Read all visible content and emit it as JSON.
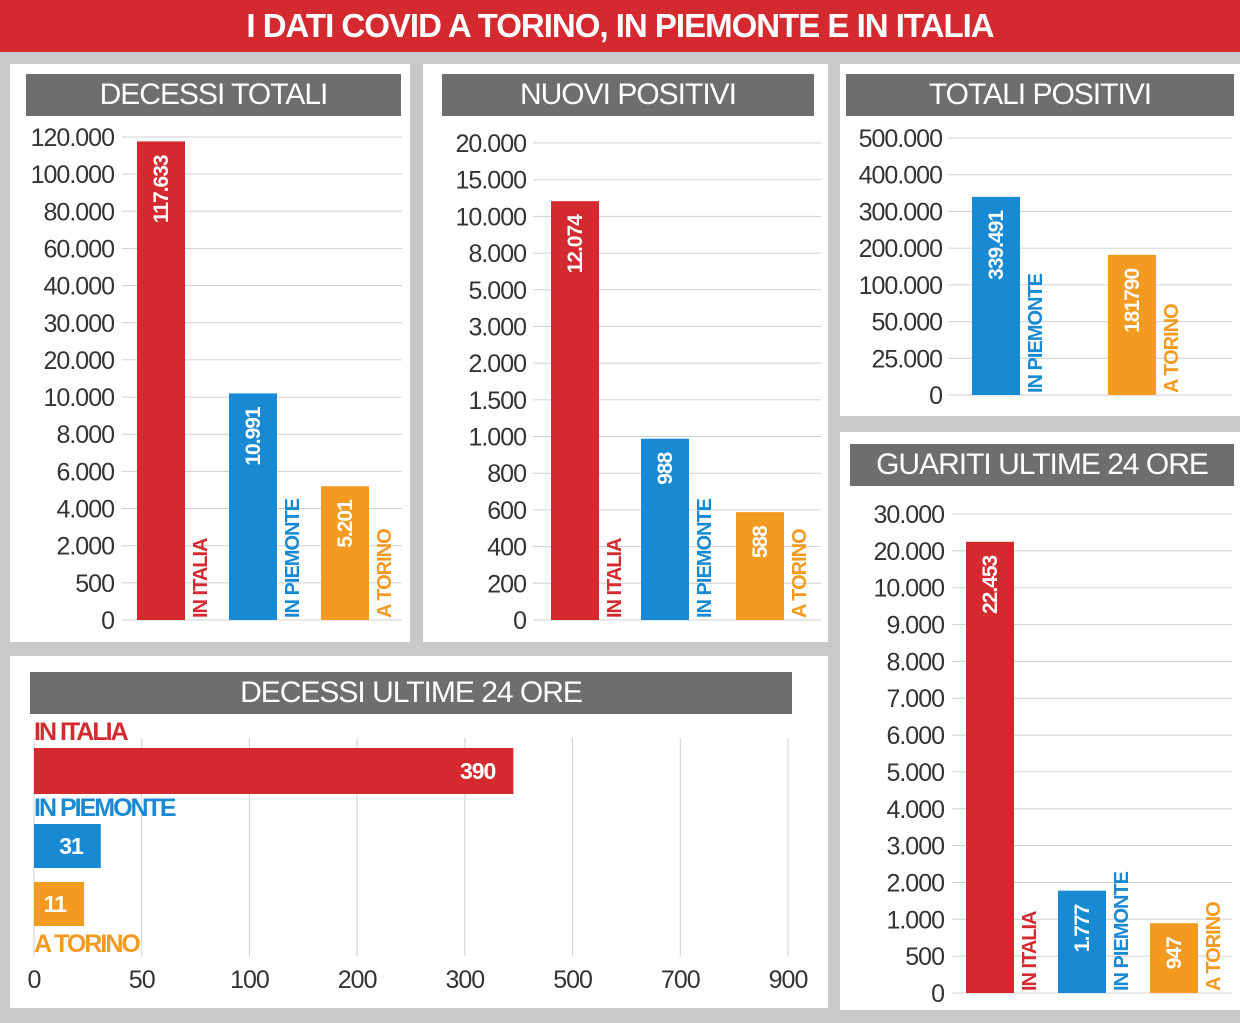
{
  "banner": {
    "title": "I DATI COVID A TORINO, IN PIEMONTE E IN ITALIA"
  },
  "colors": {
    "italia": "#d42a2f",
    "piemonte": "#1889d3",
    "torino": "#f39a21",
    "title_bg": "#6d6e70",
    "banner": "#d42a2f",
    "grid": "#d0d0d0"
  },
  "chart_data": [
    {
      "id": "decessi_totali",
      "type": "bar",
      "title": "DECESSI TOTALI",
      "scale": "non-linear (ticks equally spaced)",
      "yticks": [
        0,
        500,
        2000,
        4000,
        6000,
        8000,
        10000,
        20000,
        30000,
        40000,
        60000,
        80000,
        100000,
        120000
      ],
      "ytick_labels": [
        "0",
        "500",
        "2.000",
        "4.000",
        "6.000",
        "8.000",
        "10.000",
        "20.000",
        "30.000",
        "40.000",
        "60.000",
        "80.000",
        "100.000",
        "120.000"
      ],
      "categories": [
        "IN ITALIA",
        "IN PIEMONTE",
        "A TORINO"
      ],
      "values": [
        117633,
        10991,
        5201
      ],
      "value_labels": [
        "117.633",
        "10.991",
        "5.201"
      ],
      "grid": true
    },
    {
      "id": "nuovi_positivi",
      "type": "bar",
      "title": "NUOVI POSITIVI",
      "scale": "non-linear (ticks equally spaced)",
      "yticks": [
        0,
        200,
        400,
        600,
        800,
        1000,
        1500,
        2000,
        3000,
        5000,
        8000,
        10000,
        15000,
        20000
      ],
      "ytick_labels": [
        "0",
        "200",
        "400",
        "600",
        "800",
        "1.000",
        "1.500",
        "2.000",
        "3.000",
        "5.000",
        "8.000",
        "10.000",
        "15.000",
        "20.000"
      ],
      "categories": [
        "IN ITALIA",
        "IN PIEMONTE",
        "A TORINO"
      ],
      "values": [
        12074,
        988,
        588
      ],
      "value_labels": [
        "12.074",
        "988",
        "588"
      ],
      "grid": true
    },
    {
      "id": "totali_positivi",
      "type": "bar",
      "title": "TOTALI POSITIVI",
      "scale": "non-linear (ticks equally spaced)",
      "yticks": [
        0,
        25000,
        50000,
        100000,
        200000,
        300000,
        400000,
        500000
      ],
      "ytick_labels": [
        "0",
        "25.000",
        "50.000",
        "100.000",
        "200.000",
        "300.000",
        "400.000",
        "500.000"
      ],
      "categories": [
        "IN PIEMONTE",
        "A TORINO"
      ],
      "values": [
        339491,
        181790
      ],
      "value_labels": [
        "339.491",
        "181790"
      ],
      "grid": true
    },
    {
      "id": "guariti_24",
      "type": "bar",
      "title": "GUARITI ULTIME 24 ORE",
      "scale": "non-linear (ticks equally spaced)",
      "yticks": [
        0,
        500,
        1000,
        2000,
        3000,
        4000,
        5000,
        6000,
        7000,
        8000,
        9000,
        10000,
        20000,
        30000
      ],
      "ytick_labels": [
        "0",
        "500",
        "1.000",
        "2.000",
        "3.000",
        "4.000",
        "5.000",
        "6.000",
        "7.000",
        "8.000",
        "9.000",
        "10.000",
        "20.000",
        "30.000"
      ],
      "categories": [
        "IN ITALIA",
        "IN PIEMONTE",
        "A TORINO"
      ],
      "values": [
        22453,
        1777,
        947
      ],
      "value_labels": [
        "22.453",
        "1.777",
        "947"
      ],
      "grid": true
    },
    {
      "id": "decessi_24",
      "type": "bar",
      "orientation": "horizontal",
      "title": "DECESSI ULTIME 24 ORE",
      "scale": "non-linear (ticks equally spaced)",
      "xticks": [
        0,
        50,
        100,
        200,
        300,
        500,
        700,
        900
      ],
      "xtick_labels": [
        "0",
        "50",
        "100",
        "200",
        "300",
        "500",
        "700",
        "900"
      ],
      "categories": [
        "IN ITALIA",
        "IN PIEMONTE",
        "A TORINO"
      ],
      "values": [
        390,
        31,
        11
      ],
      "value_labels": [
        "390",
        "31",
        "11"
      ],
      "grid": true
    }
  ]
}
